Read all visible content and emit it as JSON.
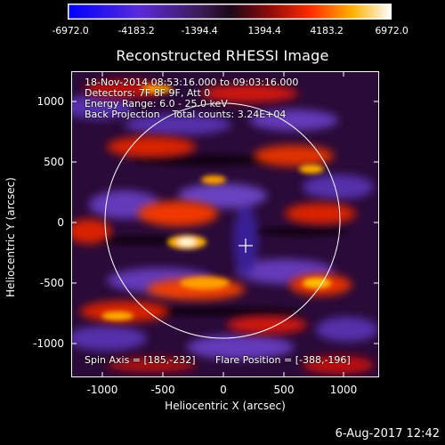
{
  "colorbar": {
    "ticks": [
      "-6972.0",
      "-4183.2",
      "-1394.4",
      "1394.4",
      "4183.2",
      "6972.0"
    ]
  },
  "plot": {
    "title": "Reconstructed RHESSI Image",
    "info": [
      "18-Nov-2014 08:53:16.000 to 09:03:16.000",
      "Detectors: 7F 8F 9F, Att 0",
      "Energy Range: 6.0 - 25.0 keV",
      "Back Projection    Total counts: 3.24E+04"
    ],
    "spin_axis": "Spin Axis = [185,-232]",
    "flare_position": "Flare Position = [-388,-196]",
    "xlabel": "Heliocentric X (arcsec)",
    "ylabel": "Heliocentric Y (arcsec)",
    "xticks": [
      "-1000",
      "-500",
      "0",
      "500",
      "1000"
    ],
    "yticks": [
      "1000",
      "500",
      "0",
      "-500",
      "-1000"
    ]
  },
  "timestamp": "6-Aug-2017 12:42",
  "colors": {
    "min": "#0000ff",
    "mid": "#2a0a38",
    "max": "#ffffff",
    "hot": "#ff3000",
    "limb": "#ffffff"
  }
}
